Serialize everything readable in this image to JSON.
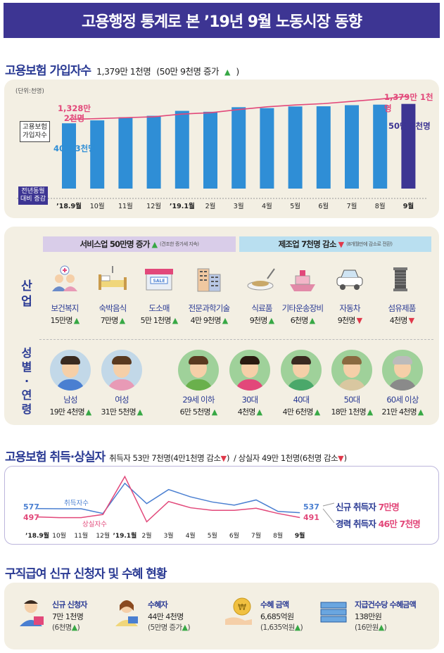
{
  "banner": {
    "title": "고용행정 통계로 본 ’19년 9월 노동시장 동향"
  },
  "insured": {
    "heading": "고용보험 가입자수",
    "summary": "1,379만 1천명",
    "summary_detail": "(50만 9천명 증가",
    "unit": "(단위:천명)",
    "side_label_line1": "고용보험",
    "side_label_line2": "가입자수",
    "bottom_label_line1": "전년동월",
    "bottom_label_line2": "대비 증감",
    "start_total_line1": "1,328만",
    "start_total_line2": "2천명",
    "end_total": "1,379만 1천명",
    "start_increase": "40만 3천명",
    "end_increase": "50만 9천명",
    "months": [
      "’18.9월",
      "10월",
      "11월",
      "12월",
      "’19.1월",
      "2월",
      "3월",
      "4월",
      "5월",
      "6월",
      "7월",
      "8월",
      "9월"
    ]
  },
  "chart_data": [
    {
      "type": "bar",
      "categories": [
        "’18.9월",
        "10월",
        "11월",
        "12월",
        "’19.1월",
        "2월",
        "3월",
        "4월",
        "5월",
        "6월",
        "7월",
        "8월",
        "9월"
      ],
      "series": [
        {
          "values": [
            403,
            419,
            436,
            444,
            471,
            466,
            491,
            486,
            495,
            496,
            502,
            505,
            509
          ]
        }
      ],
      "line": [
        13282,
        13300,
        13320,
        13340,
        13400,
        13430,
        13500,
        13560,
        13600,
        13630,
        13680,
        13730,
        13791
      ]
    },
    {
      "type": "line",
      "categories": [
        "’18.9월",
        "10월",
        "11월",
        "12월",
        "’19.1월",
        "2월",
        "3월",
        "4월",
        "5월",
        "6월",
        "7월",
        "8월",
        "9월"
      ],
      "series": [
        {
          "name": "취득자수",
          "values": [
            577,
            575,
            575,
            530,
            820,
            625,
            760,
            690,
            640,
            610,
            660,
            550,
            537
          ]
        },
        {
          "name": "상실자수",
          "values": [
            497,
            490,
            490,
            520,
            885,
            450,
            645,
            585,
            560,
            560,
            580,
            530,
            491
          ]
        }
      ],
      "start_labels": [
        "577",
        "497"
      ],
      "end_labels": [
        "537",
        "491"
      ]
    }
  ],
  "industry": {
    "side_label": "산업",
    "service_title": "서비스업 50만명 증가",
    "service_note": "(견조한 증가세 지속)",
    "mfg_title": "제조업 7천명 감소",
    "mfg_note": "(8개월만에 감소로 전환)",
    "items": [
      {
        "label": "보건복지",
        "value": "15만명",
        "dir": "up",
        "icon": "care-icon"
      },
      {
        "label": "숙박음식",
        "value": "7만명",
        "dir": "up",
        "icon": "bed-icon"
      },
      {
        "label": "도소매",
        "value": "5만 1천명",
        "dir": "up",
        "icon": "store-icon"
      },
      {
        "label": "전문과학기술",
        "value": "4만 9천명",
        "dir": "up",
        "icon": "building-icon"
      },
      {
        "label": "식료품",
        "value": "9천명",
        "dir": "up",
        "icon": "food-icon"
      },
      {
        "label": "기타운송장비",
        "value": "6천명",
        "dir": "up",
        "icon": "ship-icon"
      },
      {
        "label": "자동차",
        "value": "9천명",
        "dir": "down",
        "icon": "car-icon"
      },
      {
        "label": "섬유제품",
        "value": "4천명",
        "dir": "down",
        "icon": "thread-icon"
      }
    ],
    "sale_sign": "SALE"
  },
  "demo": {
    "side_label": "성별·연령",
    "items": [
      {
        "label": "남성",
        "value": "19만 4천명",
        "dir": "up"
      },
      {
        "label": "여성",
        "value": "31만 5천명",
        "dir": "up"
      },
      {
        "label": "29세 이하",
        "value": "6만 5천명",
        "dir": "up"
      },
      {
        "label": "30대",
        "value": "4천명",
        "dir": "up"
      },
      {
        "label": "40대",
        "value": "4만 6천명",
        "dir": "up"
      },
      {
        "label": "50대",
        "value": "18만 1천명",
        "dir": "up"
      },
      {
        "label": "60세 이상",
        "value": "21만 4천명",
        "dir": "up"
      }
    ]
  },
  "flows": {
    "heading": "고용보험 취득·상실자",
    "summary_a": "취득자 53만 7천명",
    "summary_a_detail": "(4만1천명 감소",
    "summary_b": "/ 상실자 49만 1천명",
    "summary_b_detail": "(6천명 감소",
    "series_a_label": "취득자수",
    "series_b_label": "상실자수",
    "new_label": "신규 취득자",
    "new_value": "7만명",
    "career_label": "경력 취득자",
    "career_value": "46만 7천명"
  },
  "benefit": {
    "heading": "구직급여 신규 신청자 및 수혜 현황",
    "items": [
      {
        "title": "신규 신청자",
        "value": "7만 1천명",
        "detail": "(6천명",
        "icon": "applicant-icon"
      },
      {
        "title": "수혜자",
        "value": "44만 4천명",
        "detail": "(5만명 증가",
        "icon": "recipient-icon"
      },
      {
        "title": "수혜 금액",
        "value": "6,685억원",
        "detail": "(1,635억원",
        "icon": "money-icon"
      },
      {
        "title": "지급건수당 수혜금액",
        "value": "138만원",
        "detail": "(16만원",
        "icon": "cash-stack-icon"
      }
    ]
  },
  "symbols": {
    "up": "▲",
    "down": "▼",
    "close_paren": ")"
  },
  "colors": {
    "navy": "#3d3593",
    "title_blue": "#2b3b94",
    "bar_blue": "#2f8ed6",
    "bar_last": "#3d3593",
    "line_pink": "#e2487a",
    "up": "#37a845",
    "down": "#e0394b"
  }
}
